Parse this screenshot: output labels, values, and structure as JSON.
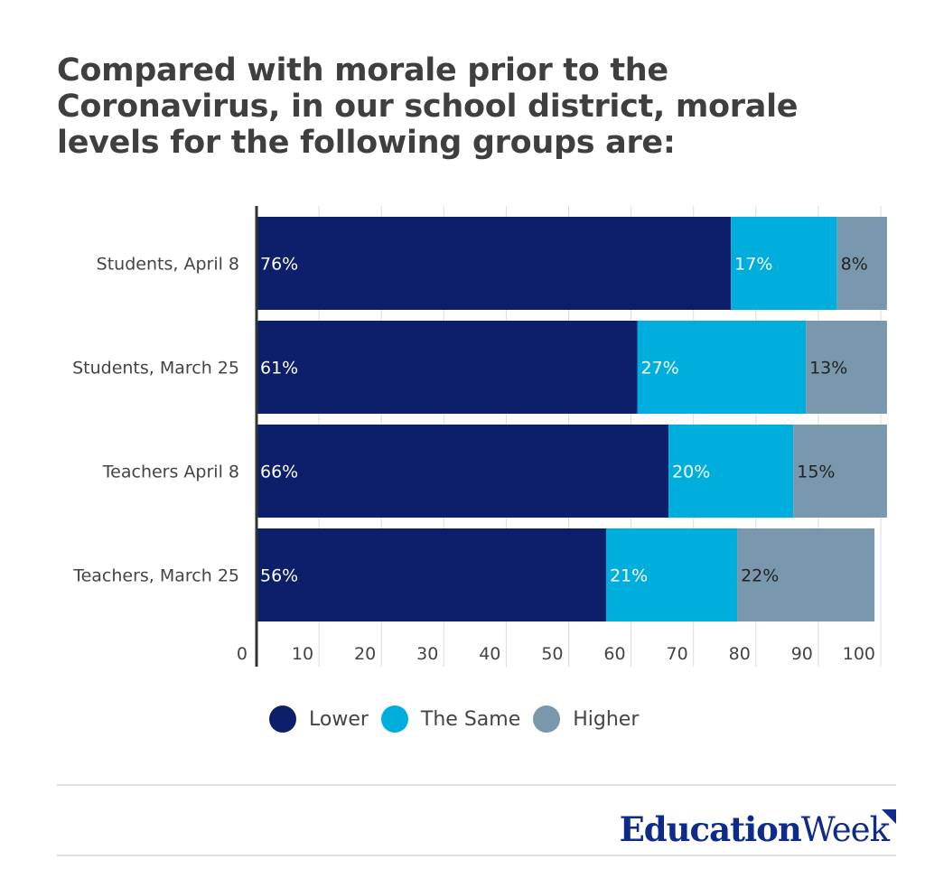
{
  "title": "Compared with morale prior to the Coronavirus, in our school district, morale levels for the following groups are:",
  "chart_data": {
    "type": "bar",
    "orientation": "horizontal",
    "stacked": true,
    "categories": [
      "Students, April 8",
      "Students, March 25",
      "Teachers April 8",
      "Teachers, March 25"
    ],
    "series": [
      {
        "name": "Lower",
        "color": "#0d1f6b",
        "values": [
          76,
          61,
          66,
          56
        ],
        "labels": [
          "76%",
          "61%",
          "66%",
          "56%"
        ]
      },
      {
        "name": "The Same",
        "color": "#00aede",
        "values": [
          17,
          27,
          20,
          21
        ],
        "labels": [
          "17%",
          "27%",
          "20%",
          "21%"
        ]
      },
      {
        "name": "Higher",
        "color": "#7a98ad",
        "values": [
          8,
          13,
          15,
          22
        ],
        "labels": [
          "8%",
          "13%",
          "15%",
          "22%"
        ]
      }
    ],
    "xlim": [
      0,
      100
    ],
    "xticks": [
      "0",
      "10",
      "20",
      "30",
      "40",
      "50",
      "60",
      "70",
      "80",
      "90",
      "100"
    ],
    "grid": true,
    "legend_position": "bottom"
  },
  "legend": [
    "Lower",
    "The Same",
    "Higher"
  ],
  "brand": {
    "part1": "Education",
    "part2": "Week"
  }
}
